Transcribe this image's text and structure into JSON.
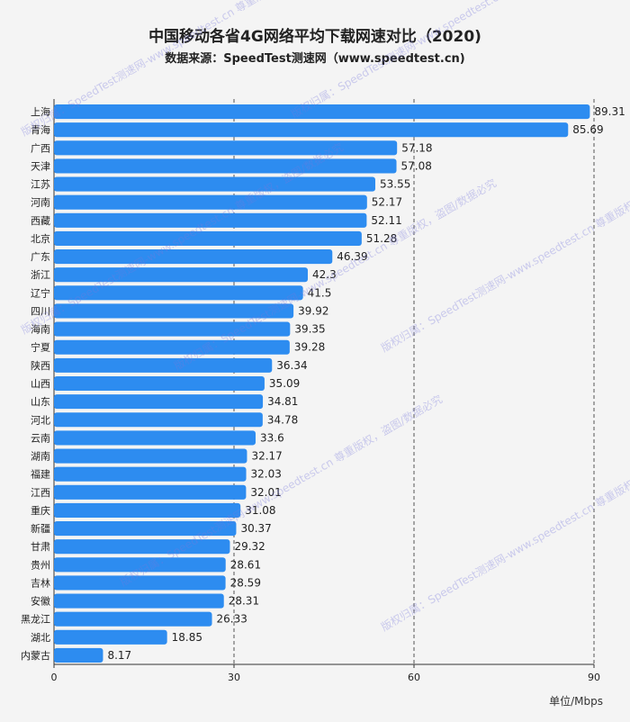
{
  "title": "中国移动各省4G网络平均下载网速对比（2020)",
  "subtitle": "数据来源：SpeedTest测速网（www.speedtest.cn)",
  "unit_label": "单位/Mbps",
  "watermark_text": "版权归属：SpeedTest测速网-www.speedtest.cn 尊重版权，盗图/数据必究",
  "colors": {
    "bar": "#2d8cf0",
    "background": "#f4f4f4",
    "grid": "#555555"
  },
  "chart_data": {
    "type": "bar",
    "orientation": "horizontal",
    "title": "中国移动各省4G网络平均下载网速对比（2020)",
    "xlabel": "单位/Mbps",
    "ylabel": "",
    "xlim": [
      0,
      90
    ],
    "xticks": [
      0,
      30,
      60,
      90
    ],
    "grid": "vertical-dashed",
    "categories": [
      "上海",
      "青海",
      "广西",
      "天津",
      "江苏",
      "河南",
      "西藏",
      "北京",
      "广东",
      "浙江",
      "辽宁",
      "四川",
      "海南",
      "宁夏",
      "陕西",
      "山西",
      "山东",
      "河北",
      "云南",
      "湖南",
      "福建",
      "江西",
      "重庆",
      "新疆",
      "甘肃",
      "贵州",
      "吉林",
      "安徽",
      "黑龙江",
      "湖北",
      "内蒙古"
    ],
    "values": [
      89.31,
      85.69,
      57.18,
      57.08,
      53.55,
      52.17,
      52.11,
      51.28,
      46.39,
      42.3,
      41.5,
      39.92,
      39.35,
      39.28,
      36.34,
      35.09,
      34.81,
      34.78,
      33.6,
      32.17,
      32.03,
      32.01,
      31.08,
      30.37,
      29.32,
      28.61,
      28.59,
      28.31,
      26.33,
      18.85,
      8.17
    ],
    "value_labels": [
      "89.31",
      "85.69",
      "57.18",
      "57.08",
      "53.55",
      "52.17",
      "52.11",
      "51.28",
      "46.39",
      "42.3",
      "41.5",
      "39.92",
      "39.35",
      "39.28",
      "36.34",
      "35.09",
      "34.81",
      "34.78",
      "33.6",
      "32.17",
      "32.03",
      "32.01",
      "31.08",
      "30.37",
      "29.32",
      "28.61",
      "28.59",
      "28.31",
      "26.33",
      "18.85",
      "8.17"
    ]
  }
}
